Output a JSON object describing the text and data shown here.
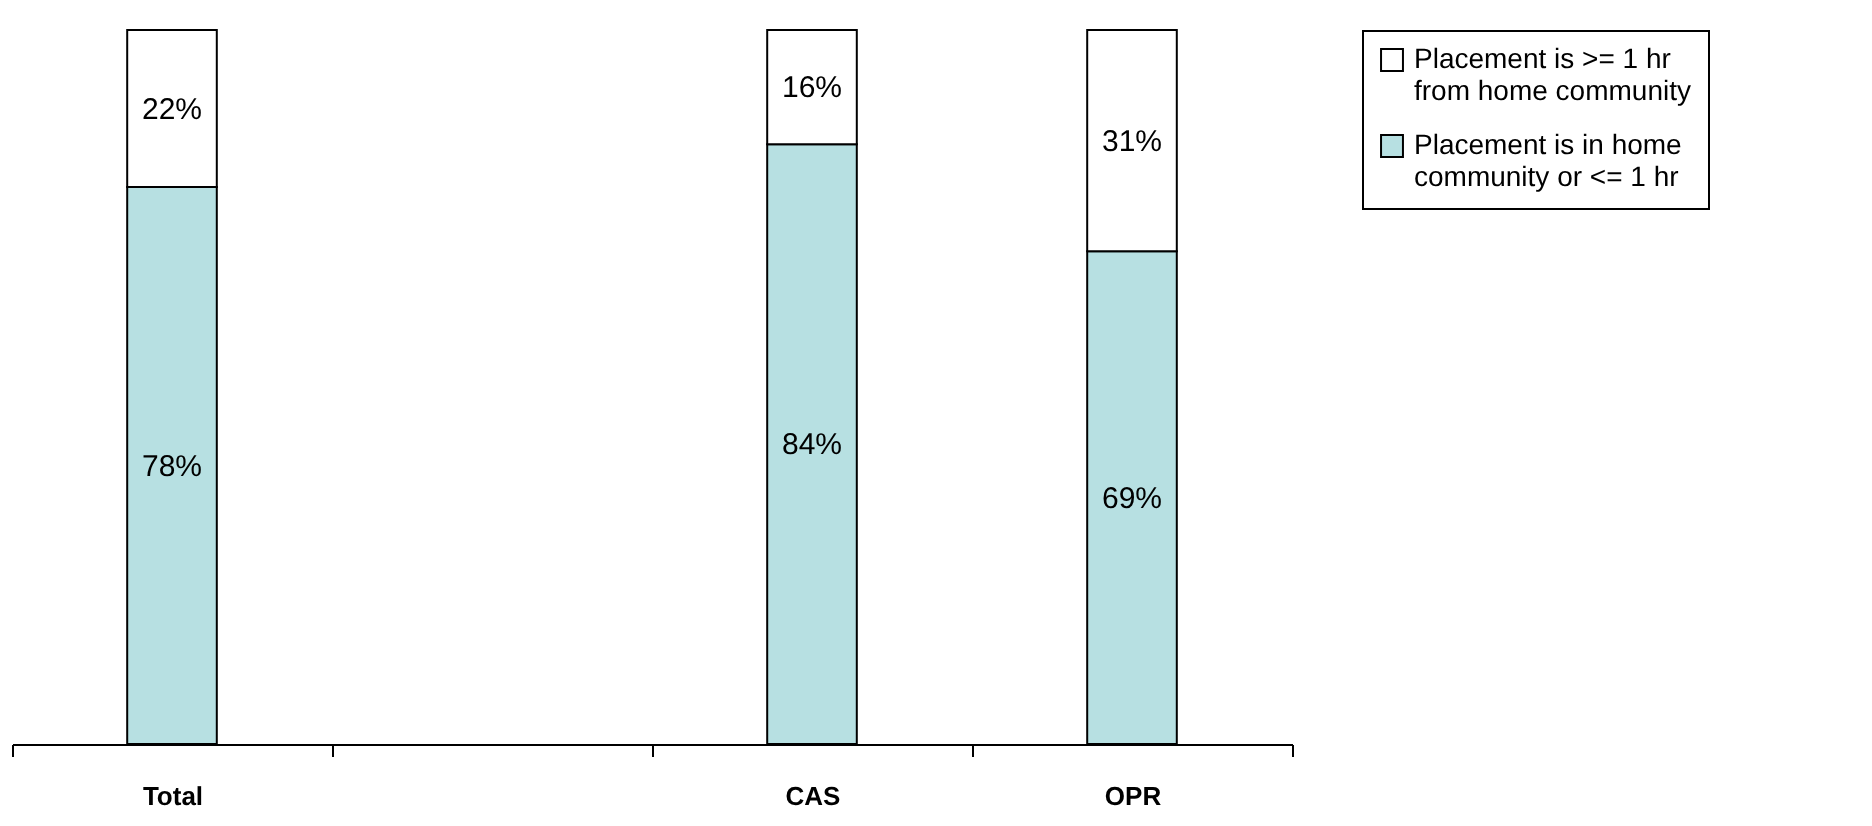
{
  "chart_data": {
    "type": "bar",
    "stacked": true,
    "legend": "right",
    "grid": false,
    "categories": [
      "Total",
      null,
      "CAS",
      "OPR"
    ],
    "series": [
      {
        "name": "Placement is in home community or <= 1 hr",
        "color": "#b7e0e2",
        "values": [
          78,
          null,
          84,
          69
        ],
        "value_labels": [
          "78%",
          null,
          "84%",
          "69%"
        ]
      },
      {
        "name": "Placement is >= 1 hr from home community",
        "color": "#ffffff",
        "values": [
          22,
          null,
          16,
          31
        ],
        "value_labels": [
          "22%",
          null,
          "16%",
          "31%"
        ]
      }
    ]
  }
}
